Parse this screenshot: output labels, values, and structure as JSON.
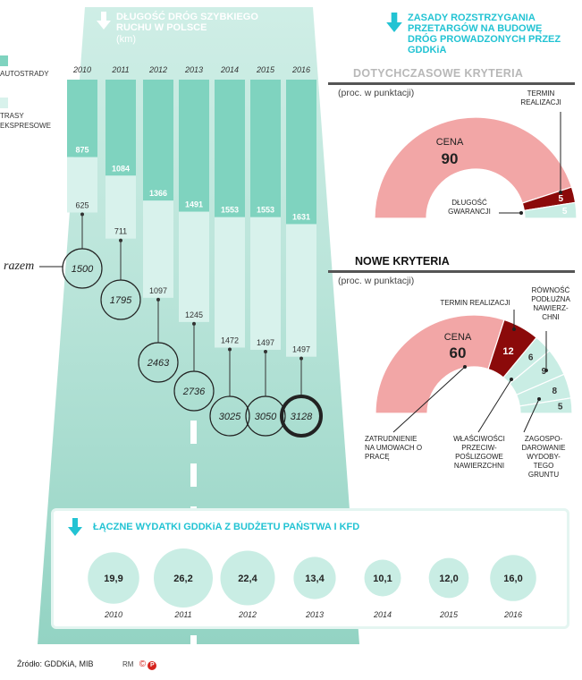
{
  "colors": {
    "autostrady": "#7fd3bf",
    "trasy": "#d8f2ec",
    "cena": "#f2a6a6",
    "termin": "#8b0a0a",
    "other": "#c9ede4",
    "cyan": "#22c3d3"
  },
  "road": {
    "title": "DŁUGOŚĆ DRÓG SZYBKIEGO RUCHU W POLSCE",
    "unit": "(km)",
    "arrow_icon": "down-arrow-icon",
    "legend": [
      {
        "label": "AUTOSTRADY",
        "color": "#7fd3bf"
      },
      {
        "label": "TRASY EKSPRESOWE",
        "color": "#d8f2ec"
      }
    ],
    "razem_label": "razem"
  },
  "expenses": {
    "title": "ŁĄCZNE WYDATKI GDDKiA Z BUDŻETU PAŃSTWA I KFD"
  },
  "criteria": {
    "title": "ZASADY ROZSTRZYGANIA PRZETARGÓW NA BUDOWĘ DRÓG PROWADZONYCH PRZEZ GDDKiA",
    "old_title": "DOTYCHCZASOWE KRYTERIA",
    "old_sub": "(proc. w punktacji)",
    "new_title": "NOWE KRYTERIA",
    "new_sub": "(proc. w punktacji)",
    "old_labels": {
      "cena": "CENA",
      "termin": "TERMIN REALIZACJI",
      "gwarancja": "DŁUGOŚĆ GWARANCJI"
    },
    "new_labels": {
      "cena": "CENA",
      "termin": "TERMIN REALIZACJI",
      "rownosc": "RÓWNOŚĆ PODŁUŻNA NAWIERZ-CHNI",
      "zatrudnienie": "ZATRUDNIENIE NA UMOWACH O PRACĘ",
      "wlasciwosci": "WŁAŚCIWOŚCI PRZECIW-POŚLIZGOWE NAWIERZCHNI",
      "zagospodarowanie": "ZAGOSPO-DAROWANIE WYDOBY-TEGO GRUNTU"
    }
  },
  "footer": {
    "source": "Źródło: GDDKiA, MIB",
    "credit": "RM"
  },
  "chart_data": [
    {
      "type": "bar",
      "title": "DŁUGOŚĆ DRÓG SZYBKIEGO RUCHU W POLSCE",
      "ylabel": "(km)",
      "categories": [
        "2010",
        "2011",
        "2012",
        "2013",
        "2014",
        "2015",
        "2016"
      ],
      "series": [
        {
          "name": "AUTOSTRADY",
          "values": [
            875,
            1084,
            1366,
            1491,
            1553,
            1553,
            1631
          ]
        },
        {
          "name": "TRASY EKSPRESOWE",
          "values": [
            625,
            711,
            1097,
            1245,
            1472,
            1497,
            1497
          ]
        }
      ],
      "totals": {
        "label": "razem",
        "values": [
          1500,
          1795,
          2463,
          2736,
          3025,
          3050,
          3128
        ]
      }
    },
    {
      "type": "bubble",
      "title": "ŁĄCZNE WYDATKI GDDKiA Z BUDŻETU PAŃSTWA I KFD",
      "categories": [
        "2010",
        "2011",
        "2012",
        "2013",
        "2014",
        "2015",
        "2016"
      ],
      "values": [
        "19,9",
        "26,2",
        "22,4",
        "13,4",
        "10,1",
        "12,0",
        "16,0"
      ],
      "numeric": [
        19.9,
        26.2,
        22.4,
        13.4,
        10.1,
        12.0,
        16.0
      ]
    },
    {
      "type": "pie",
      "title": "DOTYCHCZASOWE KRYTERIA",
      "slices": [
        {
          "label": "CENA",
          "value": 90
        },
        {
          "label": "TERMIN REALIZACJI",
          "value": 5
        },
        {
          "label": "DŁUGOŚĆ GWARANCJI",
          "value": 5
        }
      ]
    },
    {
      "type": "pie",
      "title": "NOWE KRYTERIA",
      "slices": [
        {
          "label": "CENA",
          "value": 60
        },
        {
          "label": "TERMIN REALIZACJI",
          "value": 12
        },
        {
          "label": "ZATRUDNIENIE NA UMOWACH O PRACĘ",
          "value": 6
        },
        {
          "label": "WŁAŚCIWOŚCI PRZECIWPOŚLIZGOWE NAWIERZCHNI",
          "value": 9
        },
        {
          "label": "RÓWNOŚĆ PODŁUŻNA NAWIERZCHNI",
          "value": 8
        },
        {
          "label": "ZAGOSPODAROWANIE WYDOBYTEGO GRUNTU",
          "value": 5
        }
      ]
    }
  ]
}
